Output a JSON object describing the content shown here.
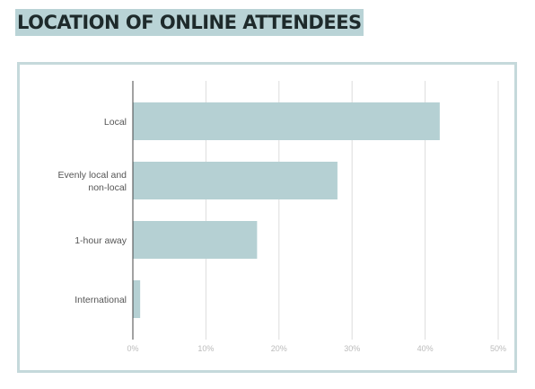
{
  "title": "LOCATION OF ONLINE ATTENDEES",
  "colors": {
    "bar": "#b5d0d3",
    "title_bg": "#b9d3d6",
    "frame": "#c5d9db",
    "grid": "#dddddd",
    "axis": "#444444"
  },
  "chart_data": {
    "type": "bar",
    "orientation": "horizontal",
    "title": "",
    "xlabel": "",
    "ylabel": "",
    "categories": [
      [
        "Local"
      ],
      [
        "Evenly local and",
        "non-local"
      ],
      [
        "1-hour away"
      ],
      [
        "International"
      ]
    ],
    "values": [
      42,
      28,
      17,
      1
    ],
    "xlim": [
      0,
      50
    ],
    "ticks": [
      0,
      10,
      20,
      30,
      40,
      50
    ],
    "tick_labels": [
      "0%",
      "10%",
      "20%",
      "30%",
      "40%",
      "50%"
    ],
    "grid": true,
    "legend": "none"
  }
}
